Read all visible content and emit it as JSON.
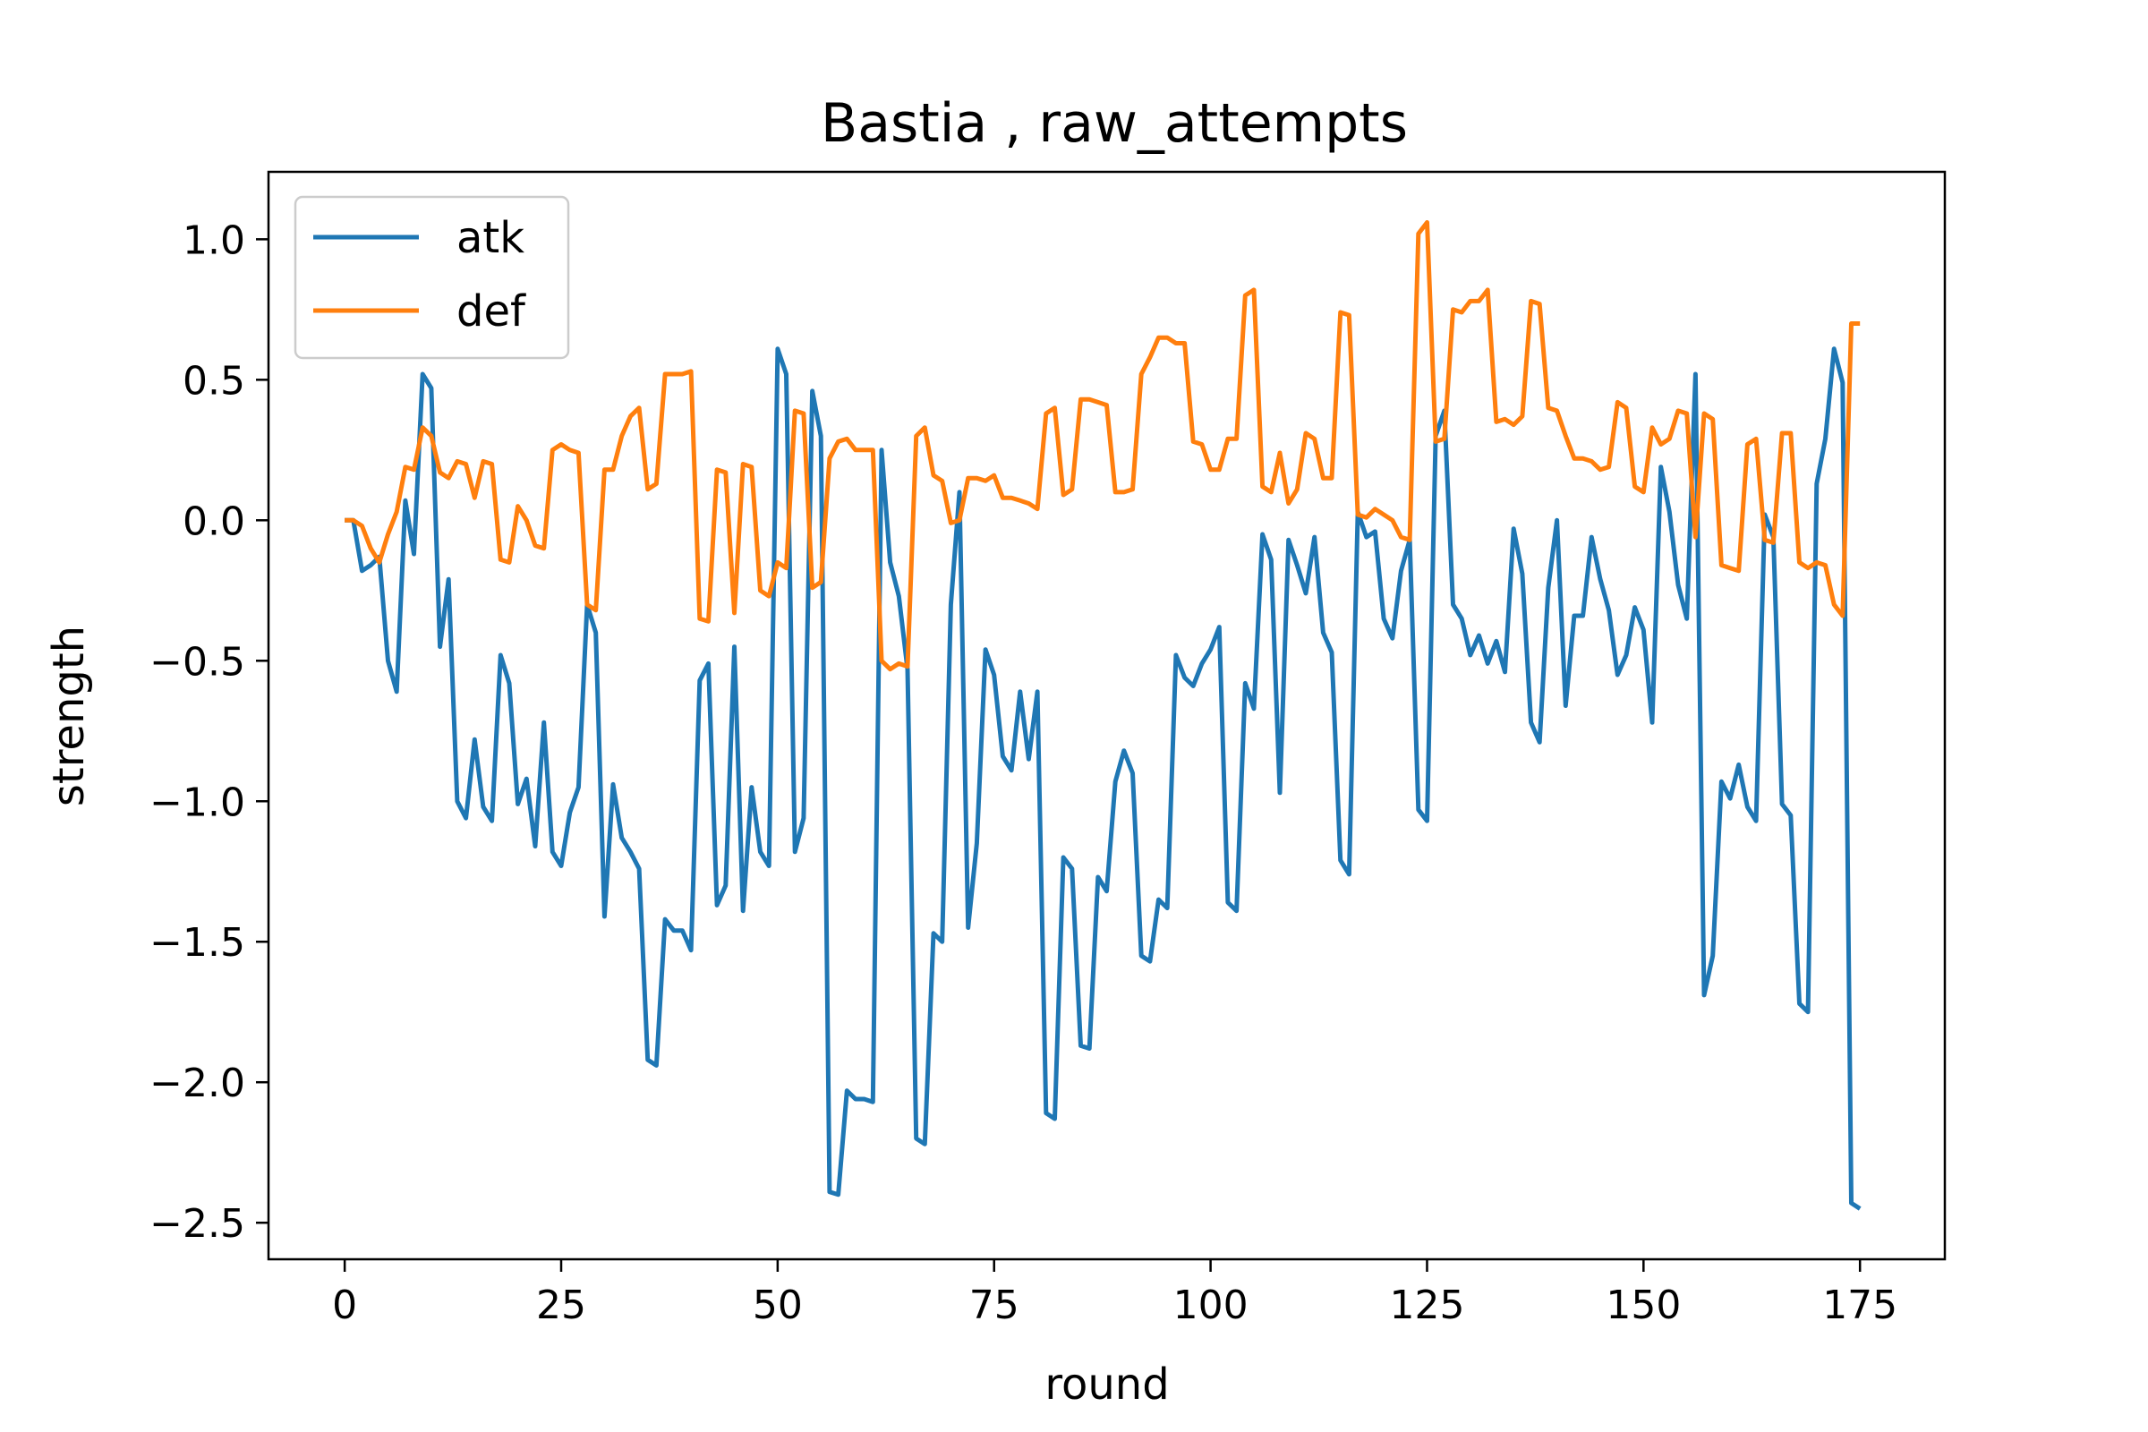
{
  "chart_data": {
    "type": "line",
    "title": "Bastia , raw_attempts",
    "xlabel": "round",
    "ylabel": "strength",
    "xlim": [
      -8.8,
      184.8
    ],
    "ylim": [
      -2.63,
      1.24
    ],
    "xticks": [
      0,
      25,
      50,
      75,
      100,
      125,
      150,
      175
    ],
    "yticks": [
      1.0,
      0.5,
      0.0,
      -0.5,
      -1.0,
      -1.5,
      -2.0,
      -2.5
    ],
    "ytick_labels": [
      "1.0",
      "0.5",
      "0.0",
      "−0.5",
      "−1.0",
      "−1.5",
      "−2.0",
      "−2.5"
    ],
    "grid": false,
    "legend_position": "upper-left",
    "series": [
      {
        "name": "atk",
        "color": "#1f77b4",
        "values": [
          0,
          0,
          -0.18,
          -0.16,
          -0.13,
          -0.5,
          -0.61,
          0.07,
          -0.12,
          0.52,
          0.47,
          -0.45,
          -0.21,
          -1.0,
          -1.06,
          -0.78,
          -1.02,
          -1.07,
          -0.48,
          -0.58,
          -1.01,
          -0.92,
          -1.16,
          -0.72,
          -1.18,
          -1.23,
          -1.04,
          -0.95,
          -0.3,
          -0.4,
          -1.41,
          -0.94,
          -1.13,
          -1.18,
          -1.24,
          -1.92,
          -1.94,
          -1.42,
          -1.46,
          -1.46,
          -1.53,
          -0.57,
          -0.51,
          -1.37,
          -1.3,
          -0.45,
          -1.39,
          -0.95,
          -1.18,
          -1.23,
          0.61,
          0.52,
          -1.18,
          -1.06,
          0.46,
          0.3,
          -2.39,
          -2.4,
          -2.03,
          -2.06,
          -2.06,
          -2.07,
          0.25,
          -0.15,
          -0.27,
          -0.53,
          -2.2,
          -2.22,
          -1.47,
          -1.5,
          -0.3,
          0.1,
          -1.45,
          -1.15,
          -0.46,
          -0.55,
          -0.84,
          -0.89,
          -0.61,
          -0.85,
          -0.61,
          -2.11,
          -2.13,
          -1.2,
          -1.24,
          -1.87,
          -1.88,
          -1.27,
          -1.32,
          -0.93,
          -0.82,
          -0.9,
          -1.55,
          -1.57,
          -1.35,
          -1.38,
          -0.48,
          -0.56,
          -0.59,
          -0.51,
          -0.46,
          -0.38,
          -1.36,
          -1.39,
          -0.58,
          -0.67,
          -0.05,
          -0.14,
          -0.97,
          -0.07,
          -0.16,
          -0.26,
          -0.06,
          -0.4,
          -0.47,
          -1.21,
          -1.26,
          0.03,
          -0.06,
          -0.04,
          -0.35,
          -0.42,
          -0.18,
          -0.07,
          -1.03,
          -1.07,
          0.3,
          0.39,
          -0.3,
          -0.35,
          -0.48,
          -0.41,
          -0.51,
          -0.43,
          -0.54,
          -0.03,
          -0.19,
          -0.72,
          -0.79,
          -0.24,
          0,
          -0.66,
          -0.34,
          -0.34,
          -0.06,
          -0.21,
          -0.32,
          -0.55,
          -0.48,
          -0.31,
          -0.39,
          -0.72,
          0.19,
          0.03,
          -0.23,
          -0.35,
          0.52,
          -1.69,
          -1.55,
          -0.93,
          -0.99,
          -0.87,
          -1.02,
          -1.07,
          0.02,
          -0.06,
          -1.01,
          -1.05,
          -1.72,
          -1.75,
          0.13,
          0.29,
          0.61,
          0.49,
          -2.43,
          -2.45
        ]
      },
      {
        "name": "def",
        "color": "#ff7f0e",
        "values": [
          0,
          0,
          -0.02,
          -0.1,
          -0.15,
          -0.05,
          0.03,
          0.19,
          0.18,
          0.33,
          0.3,
          0.17,
          0.15,
          0.21,
          0.2,
          0.08,
          0.21,
          0.2,
          -0.14,
          -0.15,
          0.05,
          0.0,
          -0.09,
          -0.1,
          0.25,
          0.27,
          0.25,
          0.24,
          -0.3,
          -0.32,
          0.18,
          0.18,
          0.3,
          0.37,
          0.4,
          0.11,
          0.13,
          0.52,
          0.52,
          0.52,
          0.53,
          -0.35,
          -0.36,
          0.18,
          0.17,
          -0.33,
          0.2,
          0.19,
          -0.25,
          -0.27,
          -0.15,
          -0.17,
          0.39,
          0.38,
          -0.24,
          -0.22,
          0.22,
          0.28,
          0.29,
          0.25,
          0.25,
          0.25,
          -0.5,
          -0.53,
          -0.51,
          -0.52,
          0.3,
          0.33,
          0.16,
          0.14,
          -0.01,
          0.0,
          0.15,
          0.15,
          0.14,
          0.16,
          0.08,
          0.08,
          0.07,
          0.06,
          0.04,
          0.38,
          0.4,
          0.09,
          0.11,
          0.43,
          0.43,
          0.42,
          0.41,
          0.1,
          0.1,
          0.11,
          0.52,
          0.58,
          0.65,
          0.65,
          0.63,
          0.63,
          0.28,
          0.27,
          0.18,
          0.18,
          0.29,
          0.29,
          0.8,
          0.82,
          0.12,
          0.1,
          0.24,
          0.06,
          0.11,
          0.31,
          0.29,
          0.15,
          0.15,
          0.74,
          0.73,
          0.02,
          0.01,
          0.04,
          0.02,
          0.0,
          -0.06,
          -0.07,
          1.02,
          1.06,
          0.28,
          0.29,
          0.75,
          0.74,
          0.78,
          0.78,
          0.82,
          0.35,
          0.36,
          0.34,
          0.37,
          0.78,
          0.77,
          0.4,
          0.39,
          0.3,
          0.22,
          0.22,
          0.21,
          0.18,
          0.19,
          0.42,
          0.4,
          0.12,
          0.1,
          0.33,
          0.27,
          0.29,
          0.39,
          0.38,
          -0.06,
          0.38,
          0.36,
          -0.16,
          -0.17,
          -0.18,
          0.27,
          0.29,
          -0.07,
          -0.08,
          0.31,
          0.31,
          -0.15,
          -0.17,
          -0.15,
          -0.16,
          -0.3,
          -0.34,
          0.7,
          0.7
        ]
      }
    ]
  }
}
